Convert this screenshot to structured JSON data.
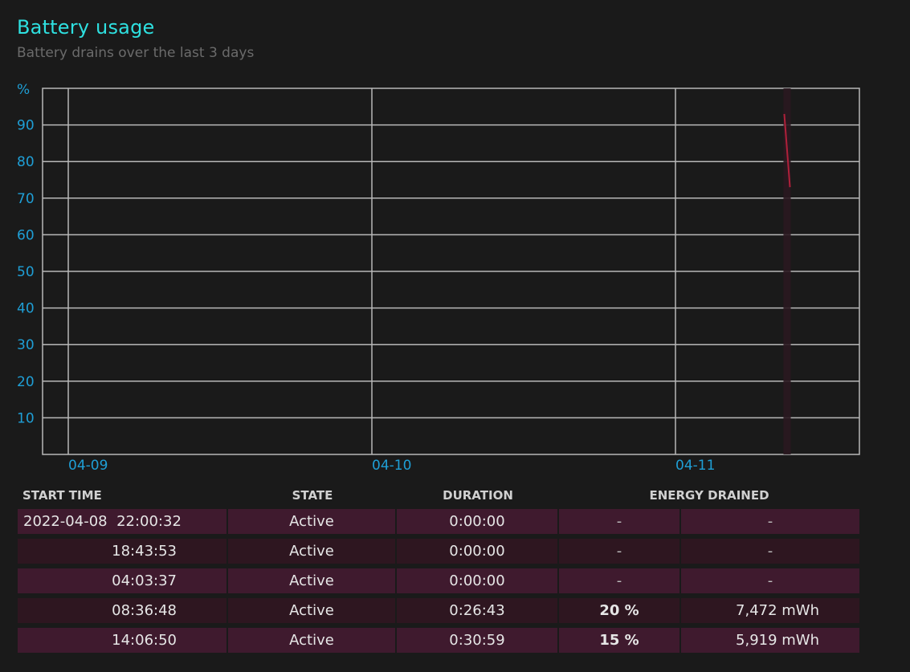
{
  "title": "Battery usage",
  "subtitle": "Battery drains over the last 3 days",
  "chart_data": {
    "type": "line",
    "ylabel": "%",
    "ylim": [
      0,
      100
    ],
    "yticks": [
      10,
      20,
      30,
      40,
      50,
      60,
      70,
      80,
      90
    ],
    "xticks": [
      "04-09",
      "04-10",
      "04-11"
    ],
    "grid": true,
    "series": [
      {
        "color": "#b0203a",
        "x": [
          "04-11 08:36",
          "04-11 09:03"
        ],
        "y": [
          93,
          73
        ]
      }
    ],
    "highlight_band_color": "#2a1820"
  },
  "table": {
    "headers": {
      "start_time": "START TIME",
      "state": "STATE",
      "duration": "DURATION",
      "energy_drained": "ENERGY DRAINED"
    },
    "rows": [
      {
        "date": "2022-04-08",
        "time": "22:00:32",
        "state": "Active",
        "duration": "0:00:00",
        "percent": "-",
        "energy": "-"
      },
      {
        "date": "",
        "time": "18:43:53",
        "state": "Active",
        "duration": "0:00:00",
        "percent": "-",
        "energy": "-"
      },
      {
        "date": "",
        "time": "04:03:37",
        "state": "Active",
        "duration": "0:00:00",
        "percent": "-",
        "energy": "-"
      },
      {
        "date": "",
        "time": "08:36:48",
        "state": "Active",
        "duration": "0:26:43",
        "percent": "20 %",
        "energy": "7,472 mWh"
      },
      {
        "date": "",
        "time": "14:06:50",
        "state": "Active",
        "duration": "0:30:59",
        "percent": "15 %",
        "energy": "5,919 mWh"
      }
    ]
  }
}
